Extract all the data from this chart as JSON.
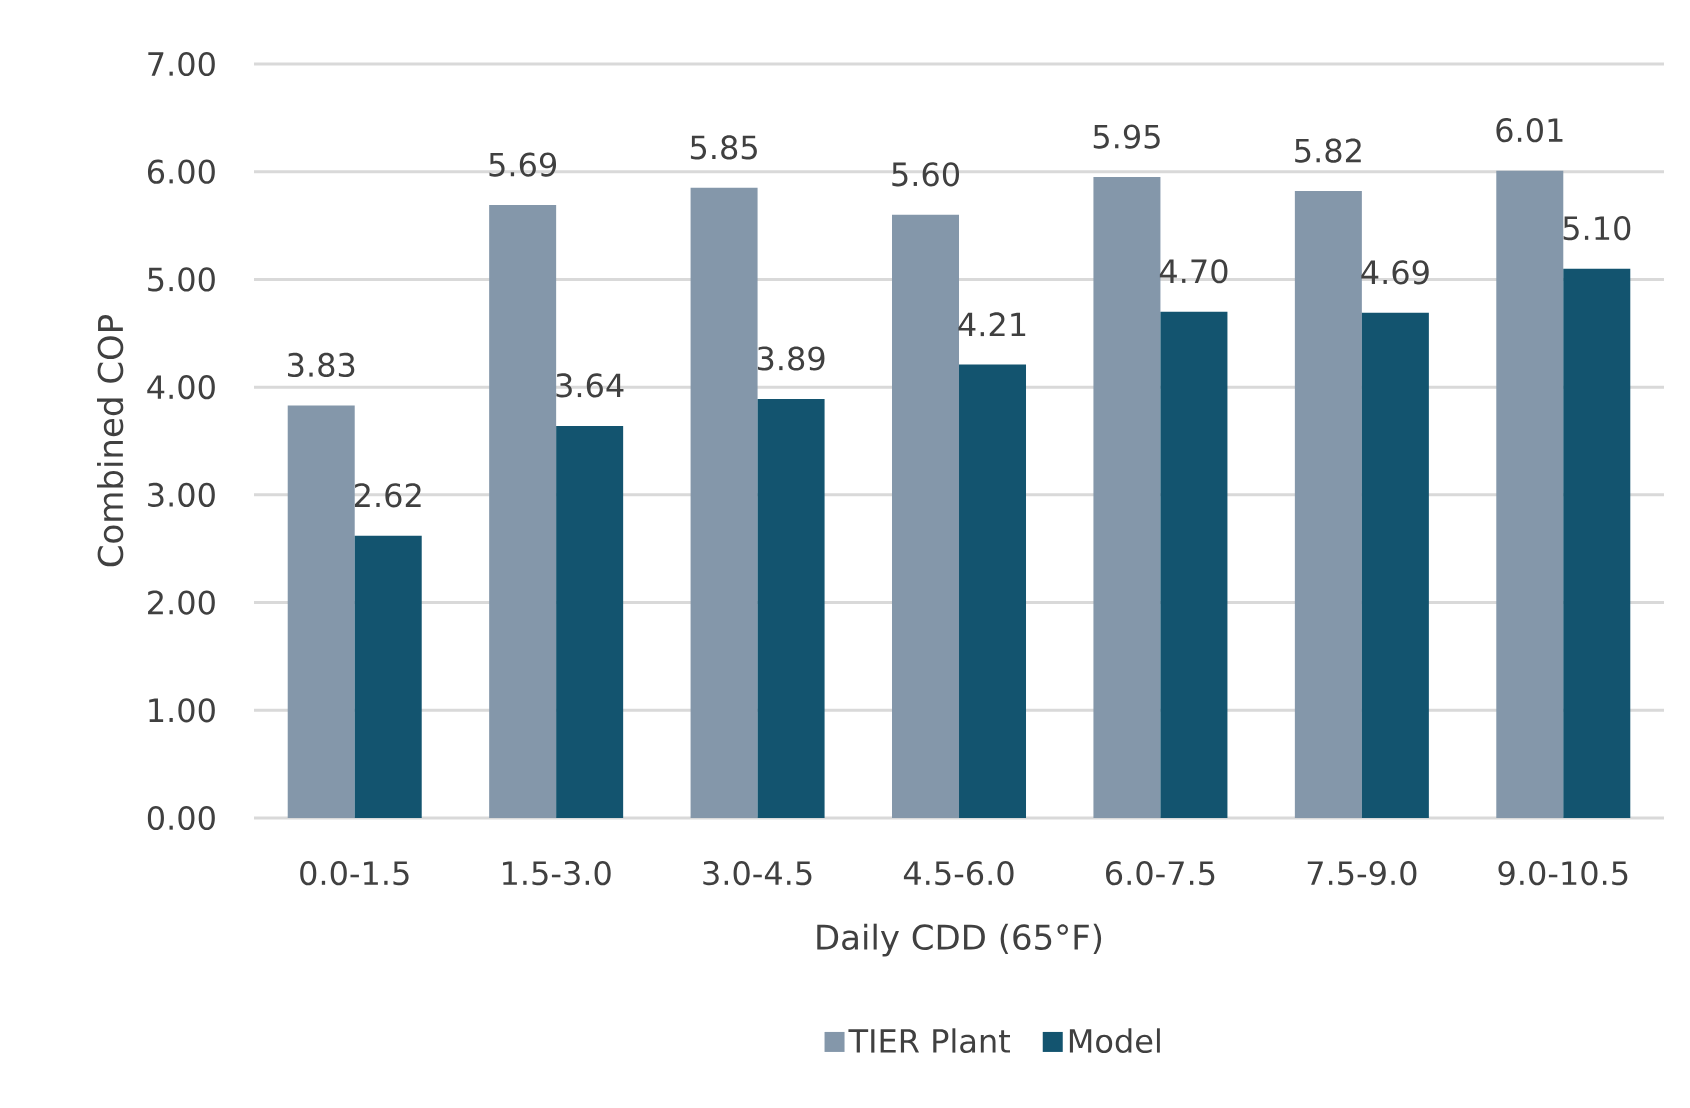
{
  "chart_data": {
    "type": "bar",
    "xlabel": "Daily CDD (65°F)",
    "ylabel": "Combined COP",
    "categories": [
      "0.0-1.5",
      "1.5-3.0",
      "3.0-4.5",
      "4.5-6.0",
      "6.0-7.5",
      "7.5-9.0",
      "9.0-10.5"
    ],
    "series": [
      {
        "name": "TIER Plant",
        "color": "#8497aa",
        "values": [
          3.83,
          5.69,
          5.85,
          5.6,
          5.95,
          5.82,
          6.01
        ],
        "value_labels": [
          "3.83",
          "5.69",
          "5.85",
          "5.60",
          "5.95",
          "5.82",
          "6.01"
        ]
      },
      {
        "name": "Model",
        "color": "#13546f",
        "values": [
          2.62,
          3.64,
          3.89,
          4.21,
          4.7,
          4.69,
          5.1
        ],
        "value_labels": [
          "2.62",
          "3.64",
          "3.89",
          "4.21",
          "4.70",
          "4.69",
          "5.10"
        ]
      }
    ],
    "ylim": [
      0,
      7
    ],
    "yticks": [
      {
        "value": 0,
        "label": "0.00"
      },
      {
        "value": 1,
        "label": "1.00"
      },
      {
        "value": 2,
        "label": "2.00"
      },
      {
        "value": 3,
        "label": "3.00"
      },
      {
        "value": 4,
        "label": "4.00"
      },
      {
        "value": 5,
        "label": "5.00"
      },
      {
        "value": 6,
        "label": "6.00"
      },
      {
        "value": 7,
        "label": "7.00"
      }
    ],
    "grid": "y",
    "legend": "bottom"
  }
}
